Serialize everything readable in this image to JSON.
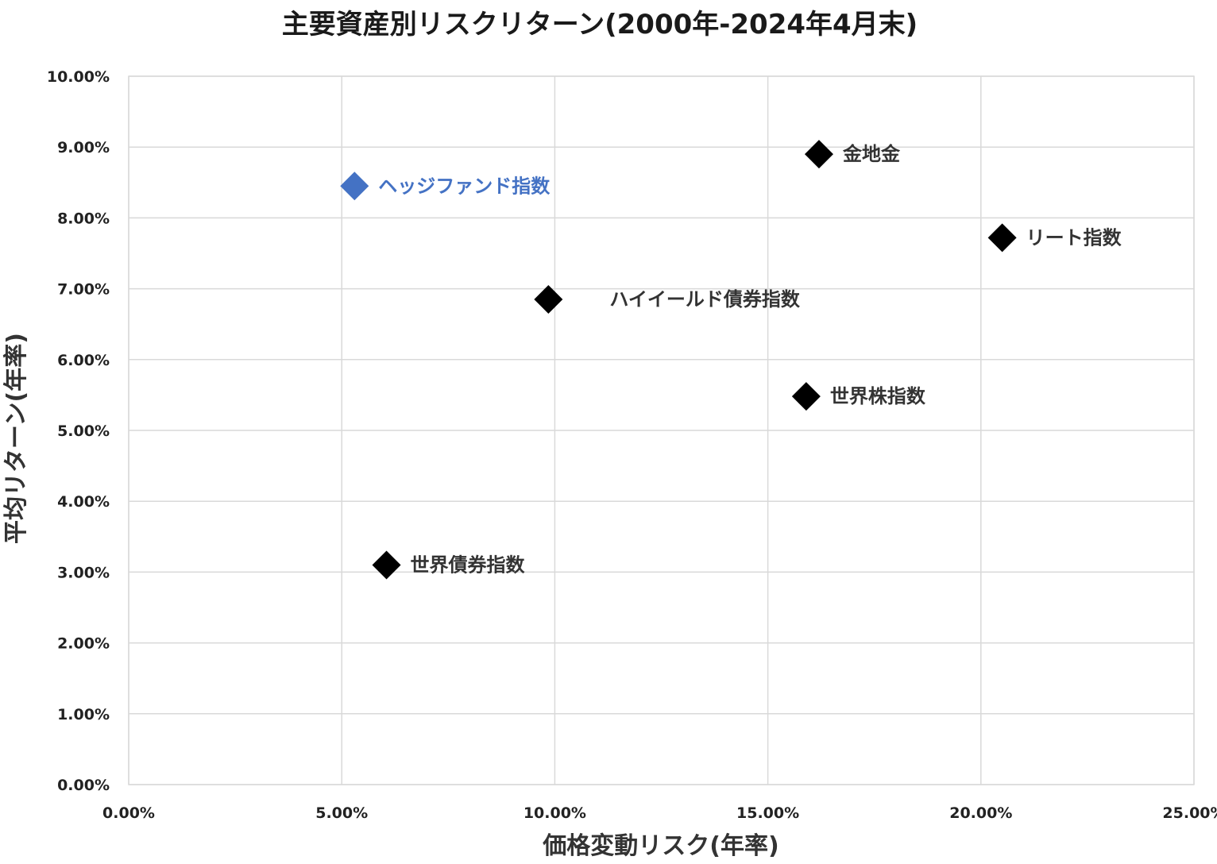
{
  "chart_data": {
    "type": "scatter",
    "title": "主要資産別リスクリターン(2000年-2024年4月末)",
    "xlabel": "価格変動リスク(年率)",
    "ylabel": "平均リターン(年率)",
    "xlim": [
      0,
      25
    ],
    "ylim": [
      0,
      10
    ],
    "x_ticks": [
      "0.00%",
      "5.00%",
      "10.00%",
      "15.00%",
      "20.00%",
      "25.00%"
    ],
    "y_ticks": [
      "0.00%",
      "1.00%",
      "2.00%",
      "3.00%",
      "4.00%",
      "5.00%",
      "6.00%",
      "7.00%",
      "8.00%",
      "9.00%",
      "10.00%"
    ],
    "grid": true,
    "marker": "diamond",
    "points": [
      {
        "label": "ヘッジファンド指数",
        "x": 5.3,
        "y": 8.45,
        "color": "#4472c4"
      },
      {
        "label": "金地金",
        "x": 16.2,
        "y": 8.9,
        "color": "#000000"
      },
      {
        "label": "リート指数",
        "x": 20.5,
        "y": 7.72,
        "color": "#000000"
      },
      {
        "label": "ハイイールド債券指数",
        "x": 9.85,
        "y": 6.85,
        "color": "#000000"
      },
      {
        "label": "世界株指数",
        "x": 15.9,
        "y": 5.48,
        "color": "#000000"
      },
      {
        "label": "世界債券指数",
        "x": 6.05,
        "y": 3.1,
        "color": "#000000"
      }
    ]
  }
}
